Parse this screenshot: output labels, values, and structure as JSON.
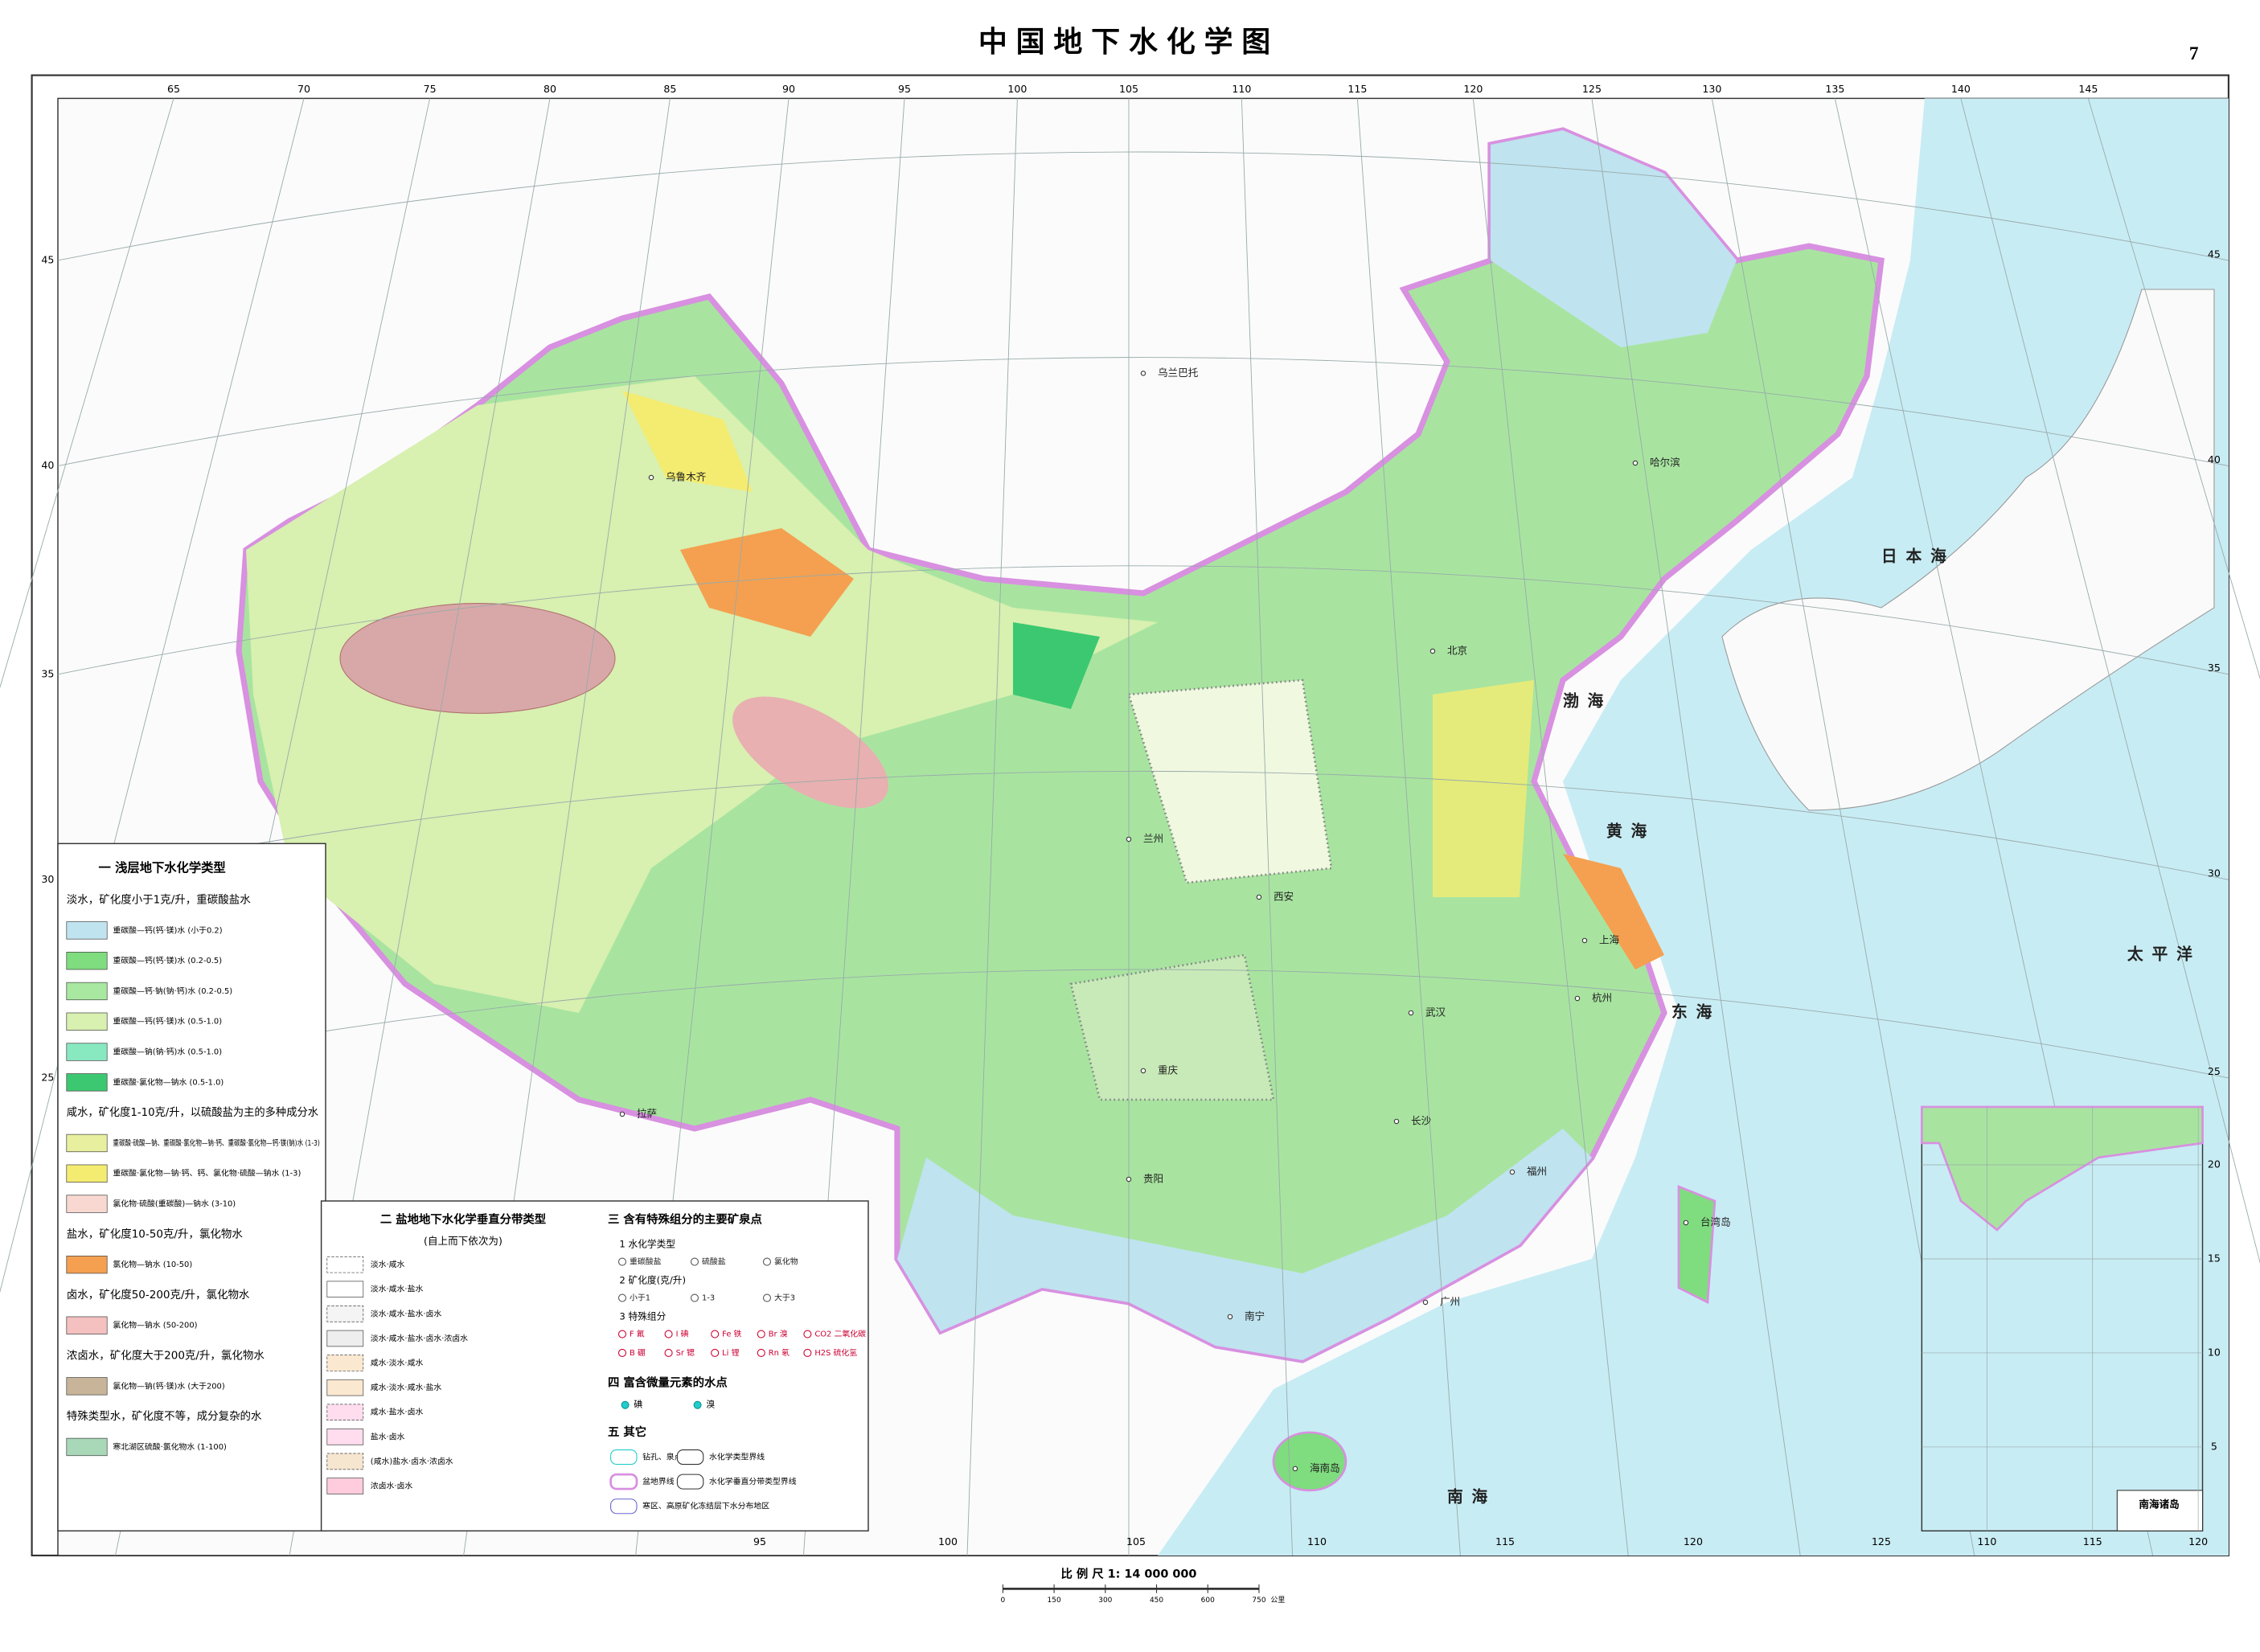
{
  "title": "中国地下水化学图",
  "page_number": "7",
  "graticule": {
    "lon_top": [
      "65",
      "70",
      "75",
      "80",
      "85",
      "90",
      "95",
      "100",
      "105",
      "110",
      "115",
      "120",
      "125",
      "130",
      "135",
      "140",
      "145"
    ],
    "lon_bottom": [
      "95",
      "100",
      "105",
      "110",
      "115",
      "120",
      "125"
    ],
    "lat_left": [
      "45",
      "40",
      "35",
      "30",
      "25"
    ],
    "lat_right": [
      "45",
      "40",
      "35",
      "30",
      "25"
    ]
  },
  "places": [
    "乌兰巴托",
    "乌鲁木齐",
    "拉萨",
    "兰州",
    "西安",
    "北京",
    "渤海",
    "黄海",
    "东海",
    "日本海",
    "上海",
    "杭州",
    "武汉",
    "长沙",
    "重庆",
    "贵阳",
    "南宁",
    "广州",
    "福州",
    "台湾岛",
    "海南岛",
    "南海",
    "太平洋",
    "哈尔滨"
  ],
  "legend1": {
    "heading": "一 浅层地下水化学类型",
    "groups": [
      {
        "label": "淡水，矿化度小于1克/升，重碳酸盐水",
        "items": [
          {
            "label": "重碳酸—钙(钙·镁)水 (小于0.2)",
            "color": "#bfe3ef"
          },
          {
            "label": "重碳酸—钙(钙·镁)水 (0.2-0.5)",
            "color": "#7fdc7f"
          },
          {
            "label": "重碳酸—钙·钠(钠·钙)水 (0.2-0.5)",
            "color": "#a8e8a0"
          },
          {
            "label": "重碳酸—钙(钙·镁)水 (0.5-1.0)",
            "color": "#d8f0b0"
          },
          {
            "label": "重碳酸—钠(钠·钙)水 (0.5-1.0)",
            "color": "#88e8c0"
          },
          {
            "label": "重碳酸·氯化物—钠水 (0.5-1.0)",
            "color": "#3cc870"
          }
        ]
      },
      {
        "label": "咸水，矿化度1-10克/升，以硫酸盐为主的多种成分水",
        "items": [
          {
            "label": "重碳酸·硫酸—钠、重碳酸·氯化物—钠·钙、重碳酸·氯化物—钙·镁(钠)水 (1-3)",
            "color": "#e8f0a0"
          },
          {
            "label": "重碳酸·氯化物—钠·钙、钙、氯化物·硫酸—钠水 (1-3)",
            "color": "#f4ec70"
          },
          {
            "label": "氯化物·硫酸(重碳酸)—钠水 (3-10)",
            "color": "#f8d8d0"
          }
        ]
      },
      {
        "label": "盐水，矿化度10-50克/升，氯化物水",
        "items": [
          {
            "label": "氯化物—钠水 (10-50)",
            "color": "#f4a050"
          }
        ]
      },
      {
        "label": "卤水，矿化度50-200克/升，氯化物水",
        "items": [
          {
            "label": "氯化物—钠水 (50-200)",
            "color": "#f4c0c0"
          }
        ]
      },
      {
        "label": "浓卤水，矿化度大于200克/升，氯化物水",
        "items": [
          {
            "label": "氯化物—钠(钙·镁)水 (大于200)",
            "color": "#c8b498"
          }
        ]
      },
      {
        "label": "特殊类型水，矿化度不等，成分复杂的水",
        "items": [
          {
            "label": "寒北湖区硫酸·氯化物水 (1-100)",
            "color": "#a8d8b8"
          }
        ]
      }
    ]
  },
  "legend2": {
    "heading": "二 盐地地下水化学垂直分带类型",
    "subheading": "(自上而下依次为)",
    "items": [
      "淡水·咸水",
      "淡水·咸水·盐水",
      "淡水·咸水·盐水·卤水",
      "淡水·咸水·盐水·卤水·浓卤水",
      "咸水·淡水·咸水",
      "咸水·淡水·咸水·盐水",
      "咸水·盐水·卤水",
      "盐水·卤水",
      "(咸水)盐水·卤水·浓卤水",
      "浓卤水·卤水"
    ]
  },
  "legend3": {
    "heading": "三 含有特殊组分的主要矿泉点",
    "groups": [
      {
        "label": "1 水化学类型",
        "items": [
          "重碳酸盐",
          "硫酸盐",
          "氯化物"
        ]
      },
      {
        "label": "2 矿化度(克/升)",
        "items": [
          "小于1",
          "1-3",
          "大于3"
        ]
      },
      {
        "label": "3 特殊组分",
        "items": [
          "F 氟",
          "I 碘",
          "Fe 铁",
          "Br 溴",
          "CO2 二氧化碳",
          "B 硼",
          "Sr 锶",
          "Li 锂",
          "Rn 氡",
          "H2S 硫化氢"
        ]
      }
    ]
  },
  "legend4": {
    "heading": "四 富含微量元素的水点",
    "items": [
      "碘",
      "溴"
    ]
  },
  "legend5": {
    "heading": "五 其它",
    "items": [
      "钻孔、泉点",
      "水化学类型界线",
      "盆地界线",
      "水化学垂直分带类型界线",
      "寒区、高原矿化冻结层下水分布地区"
    ]
  },
  "inset": {
    "title": "南海诸岛",
    "lat_labels": [
      "20",
      "15",
      "10",
      "5"
    ],
    "lon_labels": [
      "110",
      "115",
      "120"
    ]
  },
  "scale": {
    "label": "比 例 尺 1: 14 000 000",
    "ticks": [
      0,
      150,
      300,
      450,
      600,
      750
    ],
    "unit": "公里"
  }
}
